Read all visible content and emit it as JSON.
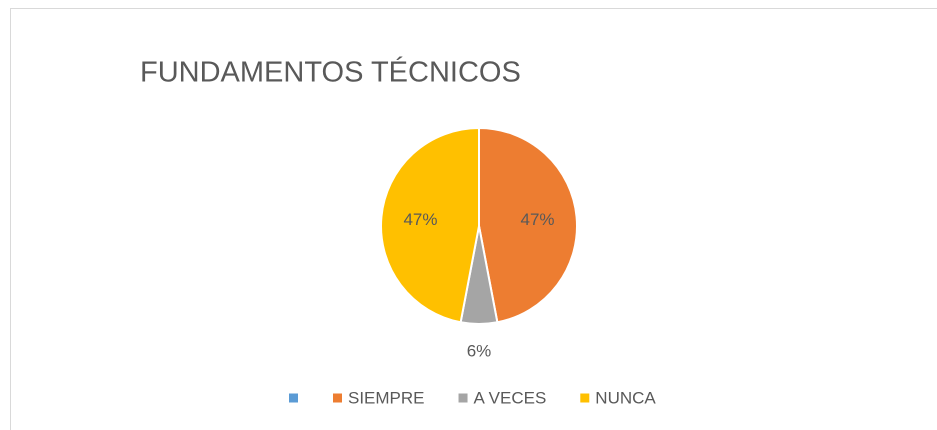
{
  "chart_data": {
    "type": "pie",
    "title": "FUNDAMENTOS TÉCNICOS",
    "categories": [
      null,
      "SIEMPRE",
      "A VECES",
      "NUNCA"
    ],
    "values": [
      0,
      47,
      6,
      47
    ],
    "value_labels": [
      null,
      "47%",
      "6%",
      "47%"
    ],
    "colors": [
      "#5b9bd5",
      "#ed7d31",
      "#a5a5a5",
      "#ffc000"
    ],
    "legend": "bottom"
  }
}
